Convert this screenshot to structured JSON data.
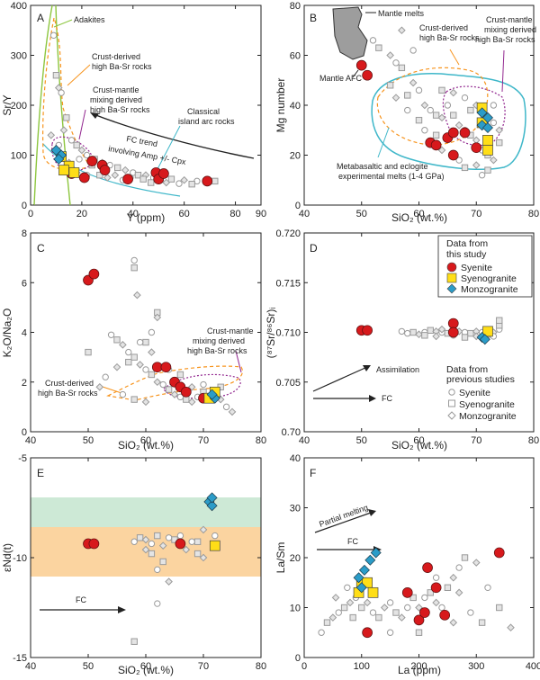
{
  "colors": {
    "syenite": "#d7191c",
    "syenogranite": "#ffde17",
    "monzogranite": "#2b9cc8",
    "prev_marker": "#9a9a9a",
    "orange_field": "#f7941d",
    "purple_field": "#92278f",
    "cyan_field": "#3fb7c9",
    "green_line": "#8dc63f",
    "green_band": "#cde9d6",
    "orange_band": "#fbd4a0"
  },
  "legend": {
    "study_title_1": "Data from",
    "study_title_2": "this study",
    "syenite": "Syenite",
    "syenogranite": "Syenogranite",
    "monzogranite": "Monzogranite",
    "prev_title_1": "Data from",
    "prev_title_2": "previous studies",
    "prev_syenite": "Syenite",
    "prev_syenogranite": "Syenogranite",
    "prev_monzogranite": "Monzogranite"
  },
  "chart_data": [
    {
      "panel": "A",
      "type": "scatter",
      "xlabel": "Y (ppm)",
      "ylabel": "Sr/Y",
      "xlim": [
        0,
        90
      ],
      "ylim": [
        0,
        400
      ],
      "xticks": [
        "0",
        "20",
        "40",
        "60",
        "80",
        "90"
      ],
      "yticks": [
        "0",
        "100",
        "200",
        "300",
        "400"
      ],
      "annotations": [
        "Adakites",
        "Crust-derived",
        "high Ba-Sr rocks",
        "Crust-mantle",
        "mixing derived",
        "high Ba-Sr rocks",
        "Classical",
        "island arc rocks",
        "FC trend",
        "involving Amp +/- Cpx"
      ],
      "syenite": [
        [
          16,
          63
        ],
        [
          21,
          55
        ],
        [
          24,
          88
        ],
        [
          28,
          80
        ],
        [
          29,
          70
        ],
        [
          38,
          52
        ],
        [
          49,
          65
        ],
        [
          50,
          52
        ],
        [
          52,
          63
        ],
        [
          69,
          48
        ]
      ],
      "syenogranite": [
        [
          12,
          97
        ],
        [
          15,
          78
        ],
        [
          17,
          65
        ],
        [
          13,
          70
        ]
      ],
      "monzogranite": [
        [
          10,
          110
        ],
        [
          12,
          100
        ],
        [
          11,
          92
        ]
      ],
      "prev": [
        [
          9,
          340
        ],
        [
          10,
          260
        ],
        [
          11,
          235
        ],
        [
          12,
          225
        ],
        [
          14,
          175
        ],
        [
          13,
          150
        ],
        [
          16,
          130
        ],
        [
          18,
          120
        ],
        [
          20,
          110
        ],
        [
          22,
          100
        ],
        [
          25,
          92
        ],
        [
          28,
          85
        ],
        [
          31,
          80
        ],
        [
          34,
          75
        ],
        [
          37,
          70
        ],
        [
          40,
          65
        ],
        [
          42,
          60
        ],
        [
          45,
          60
        ],
        [
          48,
          55
        ],
        [
          55,
          52
        ],
        [
          60,
          50
        ],
        [
          65,
          48
        ],
        [
          72,
          48
        ],
        [
          18,
          65
        ],
        [
          22,
          60
        ],
        [
          27,
          60
        ],
        [
          30,
          55
        ],
        [
          36,
          50
        ],
        [
          44,
          52
        ],
        [
          15,
          85
        ],
        [
          19,
          92
        ],
        [
          24,
          80
        ],
        [
          33,
          60
        ],
        [
          39,
          55
        ],
        [
          47,
          45
        ],
        [
          53,
          45
        ],
        [
          58,
          43
        ],
        [
          63,
          42
        ],
        [
          8,
          140
        ],
        [
          11,
          120
        ]
      ]
    },
    {
      "panel": "B",
      "type": "scatter",
      "xlabel": "SiO₂ (wt.%)",
      "ylabel": "Mg number",
      "xlim": [
        40,
        80
      ],
      "ylim": [
        0,
        80
      ],
      "xticks": [
        "40",
        "50",
        "60",
        "70",
        "80"
      ],
      "yticks": [
        "0",
        "20",
        "40",
        "60",
        "80"
      ],
      "annotations": [
        "Mantle melts",
        "Mantle AFC",
        "Crust-derived",
        "high Ba-Sr rocks",
        "Crust-mantle",
        "mixing derived",
        "high Ba-Sr rocks",
        "Metabasaltic and eclogite",
        "experimental melts (1-4 GPa)"
      ],
      "syenite": [
        [
          50,
          56
        ],
        [
          51,
          52
        ],
        [
          62,
          25
        ],
        [
          63,
          24
        ],
        [
          65,
          27
        ],
        [
          66,
          29
        ],
        [
          66,
          20
        ],
        [
          68,
          29
        ],
        [
          70,
          23
        ]
      ],
      "syenogranite": [
        [
          71,
          39
        ],
        [
          72,
          26
        ],
        [
          72,
          22
        ],
        [
          71,
          33
        ]
      ],
      "monzogranite": [
        [
          71,
          37
        ],
        [
          72,
          35
        ],
        [
          71,
          32
        ],
        [
          72,
          31
        ]
      ],
      "prev": [
        [
          52,
          66
        ],
        [
          53,
          63
        ],
        [
          55,
          60
        ],
        [
          56,
          57
        ],
        [
          57,
          55
        ],
        [
          59,
          49
        ],
        [
          60,
          46
        ],
        [
          58,
          44
        ],
        [
          61,
          40
        ],
        [
          62,
          38
        ],
        [
          63,
          36
        ],
        [
          64,
          35
        ],
        [
          65,
          40
        ],
        [
          66,
          36
        ],
        [
          67,
          32
        ],
        [
          68,
          30
        ],
        [
          69,
          28
        ],
        [
          70,
          26
        ],
        [
          71,
          22
        ],
        [
          72,
          20
        ],
        [
          73,
          18
        ],
        [
          61,
          30
        ],
        [
          63,
          28
        ],
        [
          64,
          22
        ],
        [
          67,
          18
        ],
        [
          68,
          15
        ],
        [
          70,
          16
        ],
        [
          71,
          12
        ],
        [
          72,
          14
        ],
        [
          74,
          30
        ],
        [
          73,
          33
        ],
        [
          74,
          25
        ],
        [
          56,
          43
        ],
        [
          58,
          38
        ],
        [
          60,
          34
        ],
        [
          66,
          45
        ],
        [
          68,
          43
        ],
        [
          69,
          38
        ],
        [
          70,
          40
        ],
        [
          73,
          40
        ],
        [
          64,
          46
        ],
        [
          57,
          70
        ],
        [
          59,
          62
        ],
        [
          55,
          48
        ]
      ]
    },
    {
      "panel": "C",
      "type": "scatter",
      "xlabel": "SiO₂ (wt.%)",
      "ylabel": "K₂O/Na₂O",
      "xlim": [
        40,
        80
      ],
      "ylim": [
        0,
        8
      ],
      "xticks": [
        "40",
        "50",
        "60",
        "70",
        "80"
      ],
      "yticks": [
        "0",
        "2",
        "4",
        "6",
        "8"
      ],
      "annotations": [
        "Crust-mantle",
        "mixing derived",
        "high Ba-Sr rocks",
        "Crust-derived",
        "high Ba-Sr rocks"
      ],
      "syenite": [
        [
          50,
          6.1
        ],
        [
          51,
          6.35
        ],
        [
          62,
          2.6
        ],
        [
          63.5,
          2.6
        ],
        [
          65,
          2.0
        ],
        [
          66,
          1.8
        ],
        [
          67,
          1.6
        ],
        [
          70,
          1.35
        ]
      ],
      "syenogranite": [
        [
          71,
          1.35
        ],
        [
          72,
          1.6
        ]
      ],
      "monzogranite": [
        [
          72,
          1.35
        ],
        [
          71.5,
          1.5
        ]
      ],
      "prev": [
        [
          58,
          6.9
        ],
        [
          58,
          6.6
        ],
        [
          58.5,
          5.5
        ],
        [
          54,
          3.9
        ],
        [
          55,
          3.7
        ],
        [
          56,
          3.5
        ],
        [
          57,
          3.2
        ],
        [
          58,
          3.0
        ],
        [
          59,
          2.7
        ],
        [
          60,
          2.5
        ],
        [
          61,
          2.3
        ],
        [
          62,
          2.0
        ],
        [
          63,
          1.9
        ],
        [
          64,
          1.7
        ],
        [
          65,
          1.5
        ],
        [
          66,
          1.4
        ],
        [
          67,
          1.3
        ],
        [
          68,
          1.2
        ],
        [
          69,
          1.4
        ],
        [
          70,
          1.6
        ],
        [
          73,
          1.3
        ],
        [
          74,
          1.0
        ],
        [
          62,
          4.8
        ],
        [
          62,
          4.6
        ],
        [
          61,
          4.0
        ],
        [
          60,
          3.6
        ],
        [
          61,
          3.2
        ],
        [
          59,
          3.6
        ],
        [
          57,
          2.8
        ],
        [
          55,
          2.6
        ],
        [
          53,
          2.2
        ],
        [
          50,
          3.2
        ],
        [
          52,
          1.8
        ],
        [
          56,
          1.5
        ],
        [
          58,
          1.3
        ],
        [
          60,
          1.2
        ],
        [
          64,
          2.5
        ],
        [
          66,
          2.3
        ],
        [
          68,
          1.8
        ],
        [
          70,
          1.9
        ],
        [
          73,
          1.8
        ],
        [
          75,
          0.8
        ]
      ]
    },
    {
      "panel": "D",
      "type": "scatter",
      "xlabel": "SiO₂ (wt.%)",
      "ylabel": "(⁸⁷Sr/⁸⁶Sr)ᵢ",
      "xlim": [
        40,
        80
      ],
      "ylim": [
        0.7,
        0.72
      ],
      "xticks": [
        "40",
        "50",
        "60",
        "70",
        "80"
      ],
      "yticks": [
        "0.70",
        "0.705",
        "0.710",
        "0.715",
        "0.720"
      ],
      "annotations": [
        "Assimilation",
        "FC"
      ],
      "syenite": [
        [
          50,
          0.7102
        ],
        [
          51,
          0.7102
        ],
        [
          66,
          0.7109
        ],
        [
          66,
          0.71
        ]
      ],
      "syenogranite": [
        [
          72,
          0.7101
        ]
      ],
      "monzogranite": [
        [
          71,
          0.7095
        ],
        [
          71.5,
          0.7093
        ]
      ],
      "prev": [
        [
          58,
          0.7099
        ],
        [
          59,
          0.71
        ],
        [
          60,
          0.7098
        ],
        [
          61,
          0.71
        ],
        [
          62,
          0.7102
        ],
        [
          63,
          0.7101
        ],
        [
          64,
          0.71
        ],
        [
          65,
          0.7099
        ],
        [
          67,
          0.7101
        ],
        [
          68,
          0.71
        ],
        [
          69,
          0.7099
        ],
        [
          70,
          0.7101
        ],
        [
          71,
          0.71
        ],
        [
          72,
          0.7098
        ],
        [
          73,
          0.71
        ],
        [
          74,
          0.7103
        ],
        [
          74,
          0.7107
        ],
        [
          63,
          0.7096
        ],
        [
          66,
          0.7097
        ],
        [
          68,
          0.7095
        ],
        [
          70,
          0.7096
        ],
        [
          73,
          0.7096
        ],
        [
          61,
          0.7097
        ],
        [
          64,
          0.7103
        ],
        [
          57,
          0.7101
        ],
        [
          74,
          0.7112
        ]
      ]
    },
    {
      "panel": "E",
      "type": "scatter",
      "xlabel": "SiO₂ (wt.%)",
      "ylabel": "εNd(t)",
      "xlim": [
        40,
        80
      ],
      "ylim": [
        -15,
        -5
      ],
      "xticks": [
        "40",
        "50",
        "60",
        "70",
        "80"
      ],
      "yticks": [
        "-15",
        "-10",
        "-5"
      ],
      "annotations": [
        "FC"
      ],
      "syenite": [
        [
          50,
          -9.3
        ],
        [
          51,
          -9.3
        ],
        [
          66,
          -9.3
        ]
      ],
      "syenogranite": [
        [
          72,
          -9.4
        ]
      ],
      "monzogranite": [
        [
          71,
          -7.2
        ],
        [
          71.5,
          -7.4
        ],
        [
          71.5,
          -7.0
        ]
      ],
      "prev": [
        [
          58,
          -9.2
        ],
        [
          59,
          -9.0
        ],
        [
          60,
          -9.1
        ],
        [
          61,
          -9.3
        ],
        [
          62,
          -8.9
        ],
        [
          63,
          -9.4
        ],
        [
          64,
          -9.0
        ],
        [
          65,
          -9.1
        ],
        [
          67,
          -9.6
        ],
        [
          68,
          -9.2
        ],
        [
          69,
          -9.8
        ],
        [
          70,
          -10.0
        ],
        [
          62,
          -10.6
        ],
        [
          63,
          -10.2
        ],
        [
          64,
          -11.2
        ],
        [
          62,
          -12.3
        ],
        [
          58,
          -14.2
        ],
        [
          60,
          -9.6
        ],
        [
          66,
          -8.9
        ],
        [
          69,
          -9.2
        ],
        [
          70,
          -8.6
        ],
        [
          72,
          -8.9
        ],
        [
          61,
          -9.8
        ]
      ]
    },
    {
      "panel": "F",
      "type": "scatter",
      "xlabel": "La (ppm)",
      "ylabel": "La/Sm",
      "xlim": [
        0,
        400
      ],
      "ylim": [
        0,
        40
      ],
      "xticks": [
        "0",
        "100",
        "200",
        "300",
        "400"
      ],
      "yticks": [
        "0",
        "10",
        "20",
        "30",
        "40"
      ],
      "annotations": [
        "Partial melting",
        "FC"
      ],
      "syenite": [
        [
          110,
          5
        ],
        [
          180,
          13
        ],
        [
          200,
          7.5
        ],
        [
          210,
          9
        ],
        [
          215,
          18
        ],
        [
          230,
          14
        ],
        [
          245,
          8.5
        ],
        [
          340,
          21
        ]
      ],
      "syenogranite": [
        [
          95,
          13
        ],
        [
          100,
          15
        ],
        [
          110,
          15
        ],
        [
          120,
          13
        ]
      ],
      "monzogranite": [
        [
          95,
          16
        ],
        [
          105,
          17.5
        ],
        [
          115,
          19.5
        ],
        [
          125,
          21
        ],
        [
          100,
          14
        ]
      ],
      "prev": [
        [
          30,
          5
        ],
        [
          40,
          7
        ],
        [
          50,
          8
        ],
        [
          60,
          9
        ],
        [
          70,
          10
        ],
        [
          80,
          11
        ],
        [
          90,
          12
        ],
        [
          100,
          10
        ],
        [
          110,
          11
        ],
        [
          120,
          9
        ],
        [
          130,
          8
        ],
        [
          140,
          10
        ],
        [
          150,
          11
        ],
        [
          160,
          9
        ],
        [
          170,
          8
        ],
        [
          180,
          10
        ],
        [
          190,
          12
        ],
        [
          200,
          10
        ],
        [
          210,
          12
        ],
        [
          220,
          13
        ],
        [
          230,
          11
        ],
        [
          240,
          10
        ],
        [
          250,
          14
        ],
        [
          260,
          16
        ],
        [
          270,
          18
        ],
        [
          280,
          20
        ],
        [
          300,
          19
        ],
        [
          320,
          14
        ],
        [
          340,
          10
        ],
        [
          360,
          6
        ],
        [
          150,
          5
        ],
        [
          200,
          5
        ],
        [
          260,
          7
        ],
        [
          290,
          9
        ],
        [
          310,
          7
        ],
        [
          55,
          12
        ],
        [
          75,
          14
        ],
        [
          85,
          8
        ],
        [
          270,
          13
        ],
        [
          230,
          16
        ]
      ]
    }
  ]
}
